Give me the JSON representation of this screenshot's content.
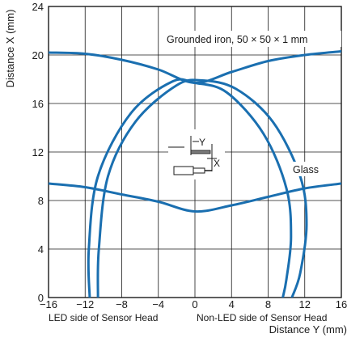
{
  "chart_data": {
    "type": "line",
    "xlabel": "Distance Y (mm)",
    "ylabel": "Distance X (mm)",
    "xlim": [
      -16,
      16
    ],
    "ylim": [
      0,
      24
    ],
    "x_ticks": [
      "−16",
      "−12",
      "−8",
      "−4",
      "0",
      "4",
      "8",
      "12",
      "16"
    ],
    "y_ticks": [
      "0",
      "4",
      "8",
      "12",
      "16",
      "20",
      "24"
    ],
    "grid": true,
    "x_sublabels": {
      "left": "LED side of Sensor Head",
      "right": "Non-LED side of Sensor Head"
    },
    "series": [
      {
        "name": "Grounded iron, 50 × 50 × 1 mm",
        "curves": [
          {
            "x": [
              -10.6,
              -10.5,
              -9.5,
              -6.5,
              -2,
              0.8,
              4.5,
              8.5,
              11.5,
              12.2,
              11.5,
              10.6
            ],
            "y": [
              0,
              4,
              10,
              14.5,
              17.5,
              17.9,
              17.2,
              14.5,
              10,
              6,
              2,
              0
            ]
          },
          {
            "x": [
              -16,
              -12,
              -8,
              -4,
              0,
              4,
              8,
              12,
              16
            ],
            "y": [
              20.2,
              20.1,
              19.6,
              18.8,
              17.7,
              18.6,
              19.5,
              20,
              20.3
            ]
          }
        ]
      },
      {
        "name": "Glass",
        "curves": [
          {
            "x": [
              -11.5,
              -11.6,
              -10.6,
              -7,
              -2.5,
              0,
              3.5,
              7.5,
              10,
              10.5,
              10,
              9.6
            ],
            "y": [
              0,
              4,
              10,
              15.2,
              17.8,
              17.7,
              16.9,
              13.5,
              9,
              5,
              1.5,
              0
            ]
          },
          {
            "x": [
              -16,
              -12,
              -8,
              -4,
              0,
              4,
              8,
              12,
              16
            ],
            "y": [
              9.4,
              9.1,
              8.5,
              7.9,
              7.1,
              7.6,
              8.3,
              9,
              9.4
            ]
          }
        ]
      }
    ],
    "annotations": [
      "Grounded iron, 50 × 50 × 1 mm",
      "Glass"
    ]
  },
  "inset": {
    "y_label": "Y",
    "x_label": "X"
  }
}
